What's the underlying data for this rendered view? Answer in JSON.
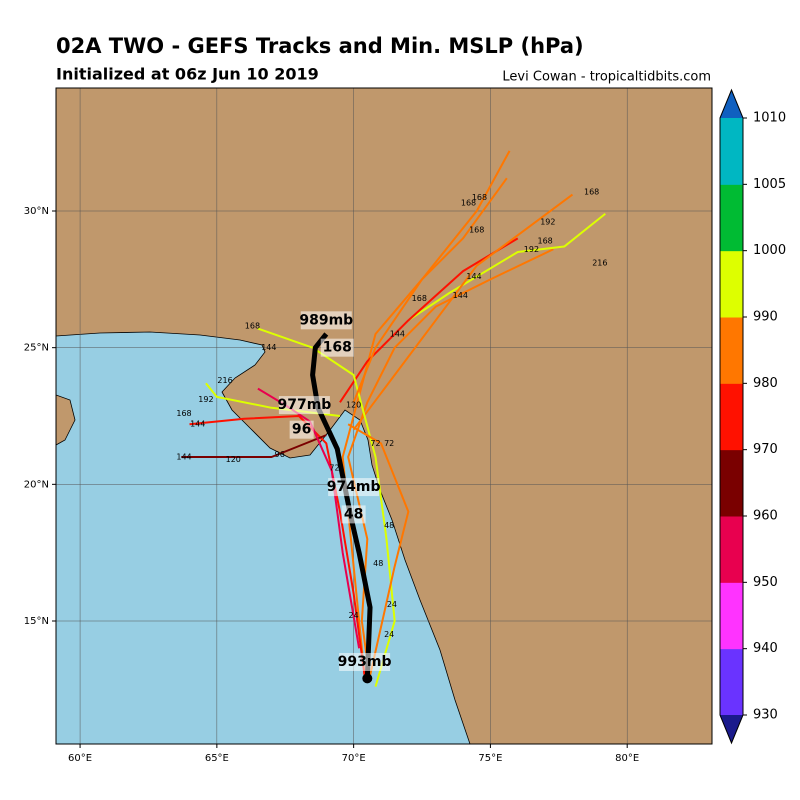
{
  "header": {
    "title": "02A TWO - GEFS Tracks and Min. MSLP (hPa)",
    "subtitle": "Initialized at 06z Jun 10 2019",
    "credit": "Levi Cowan - tropicaltidbits.com"
  },
  "map": {
    "lonlim": [
      59.12,
      83.1
    ],
    "latlim": [
      10.5,
      34.5
    ],
    "lon_ticks": [
      {
        "value": 60,
        "label": "60°E"
      },
      {
        "value": 65,
        "label": "65°E"
      },
      {
        "value": 70,
        "label": "70°E"
      },
      {
        "value": 75,
        "label": "75°E"
      },
      {
        "value": 80,
        "label": "80°E"
      }
    ],
    "lat_ticks": [
      {
        "value": 15,
        "label": "15°N"
      },
      {
        "value": 20,
        "label": "20°N"
      },
      {
        "value": 25,
        "label": "25°N"
      },
      {
        "value": 30,
        "label": "30°N"
      }
    ],
    "mean_track": {
      "color": "#000000",
      "lon": [
        70.5,
        70.6,
        70.2,
        69.9,
        69.4,
        68.7,
        68.5,
        68.6,
        69.0
      ],
      "lat": [
        12.9,
        15.5,
        17.5,
        18.8,
        21.3,
        22.8,
        24.0,
        25.0,
        25.5
      ]
    },
    "tracks": [
      {
        "color": "#ff7700",
        "lon": [
          70.6,
          70.3,
          70.5,
          69.8,
          70.5,
          71.5,
          73.0,
          75.0,
          77.3
        ],
        "lat": [
          12.8,
          15.0,
          18.0,
          21.0,
          23.0,
          25.0,
          26.5,
          27.5,
          28.6
        ]
      },
      {
        "color": "#ff7700",
        "lon": [
          70.4,
          70.0,
          69.6,
          70.8,
          72.5,
          74.0,
          75.6
        ],
        "lat": [
          13.0,
          17.0,
          21.0,
          25.5,
          27.5,
          29.0,
          31.2
        ]
      },
      {
        "color": "#ddff00",
        "lon": [
          72.0,
          73.5,
          76.0,
          77.7,
          79.2
        ],
        "lat": [
          26.0,
          27.0,
          28.5,
          28.7,
          29.9
        ]
      },
      {
        "color": "#ff1100",
        "lon": [
          70.4,
          70.0,
          69.5,
          69.0,
          68.0,
          66.0,
          64.0
        ],
        "lat": [
          13.0,
          16.0,
          19.0,
          21.5,
          22.5,
          22.4,
          22.2
        ]
      },
      {
        "color": "#ddff00",
        "lon": [
          69.5,
          67.0,
          65.0,
          64.6
        ],
        "lat": [
          22.5,
          22.8,
          23.2,
          23.7
        ]
      },
      {
        "color": "#7a0000",
        "lon": [
          69.0,
          67.0,
          65.5,
          63.7
        ],
        "lat": [
          21.8,
          21.0,
          21.0,
          21.0
        ]
      },
      {
        "color": "#ff1100",
        "lon": [
          69.5,
          70.5,
          72.0,
          74.0,
          76.0
        ],
        "lat": [
          23.0,
          24.5,
          26.0,
          27.8,
          29.0
        ]
      },
      {
        "color": "#ff7700",
        "lon": [
          70.0,
          71.5,
          73.0,
          74.5,
          78.0
        ],
        "lat": [
          22.0,
          24.0,
          26.0,
          28.0,
          30.6
        ]
      },
      {
        "color": "#ddff00",
        "lon": [
          70.8,
          71.5,
          71.2,
          70.8,
          70.0,
          68.5,
          66.5
        ],
        "lat": [
          12.6,
          15.0,
          18.0,
          21.0,
          24.0,
          25.0,
          25.7
        ]
      },
      {
        "color": "#ff7700",
        "lon": [
          70.6,
          71.5,
          72.0,
          71.0,
          69.8
        ],
        "lat": [
          13.0,
          17.0,
          19.0,
          21.5,
          22.2
        ]
      },
      {
        "color": "#e8004f",
        "lon": [
          70.2,
          69.6,
          69.2,
          68.4,
          67.5,
          66.5
        ],
        "lat": [
          14.0,
          17.5,
          20.5,
          22.3,
          22.9,
          23.5
        ]
      },
      {
        "color": "#ff7700",
        "lon": [
          70.0,
          70.8,
          72.5,
          74.5,
          75.7
        ],
        "lat": [
          23.0,
          25.0,
          27.5,
          30.0,
          32.2
        ]
      }
    ],
    "annotations": [
      {
        "text": "989mb",
        "lon": 69.0,
        "lat": 26.0
      },
      {
        "text": "168",
        "lon": 69.4,
        "lat": 25.0
      },
      {
        "text": "977mb",
        "lon": 68.2,
        "lat": 22.9
      },
      {
        "text": "96",
        "lon": 68.1,
        "lat": 22.0
      },
      {
        "text": "974mb",
        "lon": 70.0,
        "lat": 19.9
      },
      {
        "text": "48",
        "lon": 70.0,
        "lat": 18.9
      },
      {
        "text": "993mb",
        "lon": 70.4,
        "lat": 13.5
      }
    ],
    "time_labels": [
      {
        "text": "168",
        "lon": 78.7,
        "lat": 30.7
      },
      {
        "text": "192",
        "lon": 77.1,
        "lat": 29.6
      },
      {
        "text": "168",
        "lon": 77.0,
        "lat": 28.9
      },
      {
        "text": "192",
        "lon": 76.5,
        "lat": 28.6
      },
      {
        "text": "216",
        "lon": 79.0,
        "lat": 28.1
      },
      {
        "text": "144",
        "lon": 74.4,
        "lat": 27.6
      },
      {
        "text": "168",
        "lon": 74.6,
        "lat": 30.5
      },
      {
        "text": "168",
        "lon": 74.2,
        "lat": 30.3
      },
      {
        "text": "168",
        "lon": 74.5,
        "lat": 29.3
      },
      {
        "text": "168",
        "lon": 72.4,
        "lat": 26.8
      },
      {
        "text": "144",
        "lon": 73.9,
        "lat": 26.9
      },
      {
        "text": "144",
        "lon": 71.6,
        "lat": 25.5
      },
      {
        "text": "168",
        "lon": 66.3,
        "lat": 25.8
      },
      {
        "text": "144",
        "lon": 66.9,
        "lat": 25.0
      },
      {
        "text": "216",
        "lon": 65.3,
        "lat": 23.8
      },
      {
        "text": "192",
        "lon": 64.6,
        "lat": 23.1
      },
      {
        "text": "168",
        "lon": 63.8,
        "lat": 22.6
      },
      {
        "text": "144",
        "lon": 64.3,
        "lat": 22.2
      },
      {
        "text": "144",
        "lon": 63.8,
        "lat": 21.0
      },
      {
        "text": "120",
        "lon": 65.6,
        "lat": 20.9
      },
      {
        "text": "72",
        "lon": 70.8,
        "lat": 21.5
      },
      {
        "text": "72",
        "lon": 71.3,
        "lat": 21.5
      },
      {
        "text": "48",
        "lon": 71.3,
        "lat": 18.5
      },
      {
        "text": "48",
        "lon": 70.9,
        "lat": 17.1
      },
      {
        "text": "24",
        "lon": 71.4,
        "lat": 15.6
      },
      {
        "text": "24",
        "lon": 71.3,
        "lat": 14.5
      },
      {
        "text": "24",
        "lon": 70.0,
        "lat": 15.2
      },
      {
        "text": "120",
        "lon": 70.0,
        "lat": 22.9
      },
      {
        "text": "96",
        "lon": 67.3,
        "lat": 21.1
      },
      {
        "text": "72",
        "lon": 69.3,
        "lat": 20.6
      }
    ]
  },
  "colorbar": {
    "levels": [
      930,
      940,
      950,
      960,
      970,
      980,
      990,
      1000,
      1005,
      1010
    ],
    "colors": [
      "#6a33ff",
      "#ff33ff",
      "#e8004f",
      "#7a0000",
      "#ff1100",
      "#ff7700",
      "#ddff00",
      "#00bb33",
      "#00b7c2"
    ],
    "under_color": "#1a1a8c",
    "over_color": "#1060c0"
  }
}
